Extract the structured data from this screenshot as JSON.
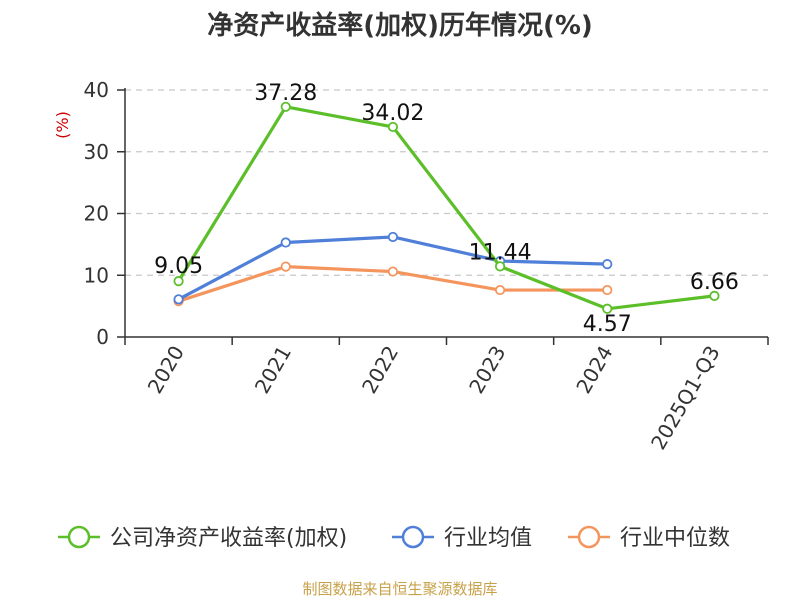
{
  "chart_data": {
    "type": "line",
    "title": "净资产收益率(加权)历年情况(%)",
    "ylabel": "(%)",
    "xlabel": "",
    "categories": [
      "2020",
      "2021",
      "2022",
      "2023",
      "2024",
      "2025Q1-Q3"
    ],
    "ylim": [
      0,
      40
    ],
    "yticks": [
      0,
      10,
      20,
      30,
      40
    ],
    "grid": true,
    "legend_position": "bottom",
    "series": [
      {
        "name": "公司净资产收益率(加权)",
        "color": "#5cbf2a",
        "values": [
          9.05,
          37.28,
          34.02,
          11.44,
          4.57,
          6.66
        ],
        "labels": [
          "9.05",
          "37.28",
          "34.02",
          "11.44",
          "4.57",
          "6.66"
        ]
      },
      {
        "name": "行业均值",
        "color": "#4f7fd8",
        "values": [
          6.1,
          15.3,
          16.2,
          12.3,
          11.8,
          null
        ]
      },
      {
        "name": "行业中位数",
        "color": "#f4955d",
        "values": [
          5.8,
          11.4,
          10.6,
          7.6,
          7.6,
          null
        ]
      }
    ]
  },
  "footer": {
    "source": "制图数据来自恒生聚源数据库"
  }
}
